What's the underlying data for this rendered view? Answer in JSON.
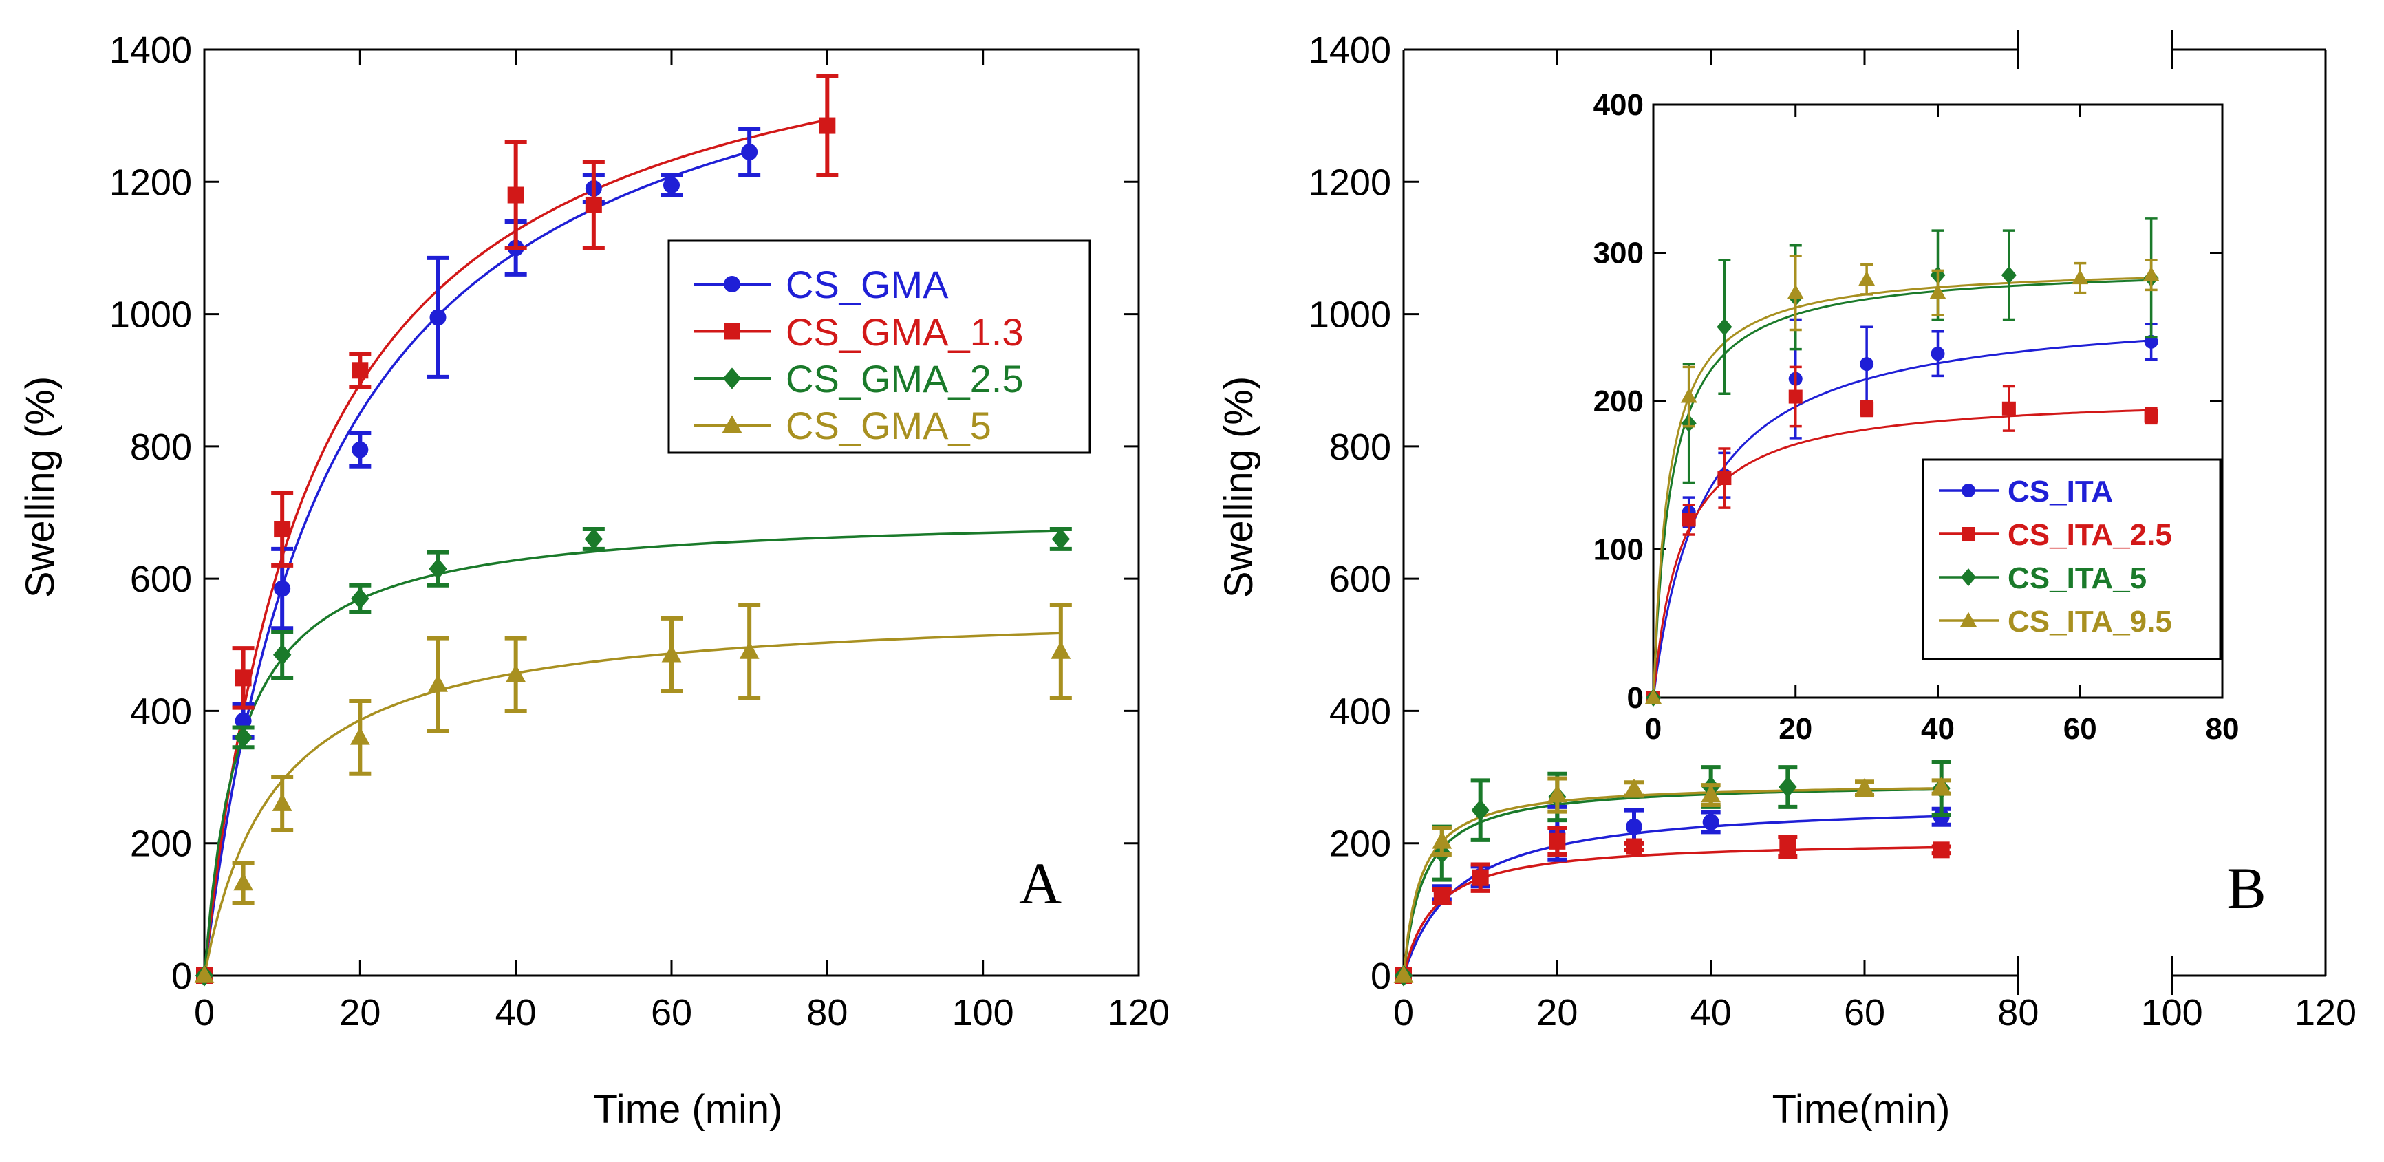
{
  "chart_data": [
    {
      "id": "A",
      "type": "scatter",
      "panel_label": "A",
      "xlabel": "Time (min)",
      "ylabel": "Swelling (%)",
      "xlim": [
        0,
        120
      ],
      "ylim": [
        0,
        1400
      ],
      "xticks": [
        0,
        20,
        40,
        60,
        80,
        100,
        120
      ],
      "yticks": [
        0,
        200,
        400,
        600,
        800,
        1000,
        1200,
        1400
      ],
      "grid": false,
      "legend_position": "right",
      "series": [
        {
          "name": "CS_GMA",
          "color": "#1f1fd6",
          "marker": "circle",
          "x": [
            0,
            5,
            10,
            20,
            30,
            40,
            50,
            60,
            70
          ],
          "y": [
            0,
            385,
            585,
            795,
            995,
            1100,
            1190,
            1195,
            1245
          ],
          "err": [
            0,
            25,
            60,
            25,
            90,
            40,
            20,
            15,
            35
          ],
          "fit": {
            "smax": 1530,
            "k": 16
          }
        },
        {
          "name": "CS_GMA_1.3",
          "color": "#d21818",
          "marker": "square",
          "x": [
            0,
            5,
            10,
            20,
            40,
            50,
            80
          ],
          "y": [
            0,
            450,
            675,
            915,
            1180,
            1165,
            1285
          ],
          "err": [
            0,
            45,
            55,
            25,
            80,
            65,
            75
          ],
          "fit": {
            "smax": 1520,
            "k": 14
          }
        },
        {
          "name": "CS_GMA_2.5",
          "color": "#1a7a2a",
          "marker": "diamond",
          "x": [
            0,
            5,
            10,
            20,
            30,
            50,
            110
          ],
          "y": [
            0,
            360,
            485,
            570,
            615,
            660,
            660
          ],
          "err": [
            0,
            15,
            35,
            20,
            25,
            15,
            15
          ],
          "fit": {
            "smax": 700,
            "k": 4.6
          }
        },
        {
          "name": "CS_GMA_5",
          "color": "#a89020",
          "marker": "triangle",
          "x": [
            0,
            5,
            10,
            20,
            30,
            40,
            60,
            70,
            110
          ],
          "y": [
            0,
            140,
            260,
            360,
            440,
            455,
            485,
            490,
            490
          ],
          "err": [
            0,
            30,
            40,
            55,
            70,
            55,
            55,
            70,
            70
          ],
          "fit": {
            "smax": 560,
            "k": 9
          }
        }
      ]
    },
    {
      "id": "B",
      "type": "scatter",
      "panel_label": "B",
      "xlabel": "Time(min)",
      "ylabel": "Swelling (%)",
      "xlim": [
        0,
        120
      ],
      "ylim": [
        0,
        1400
      ],
      "xticks": [
        0,
        20,
        40,
        60,
        80,
        100,
        120
      ],
      "yticks": [
        0,
        200,
        400,
        600,
        800,
        1000,
        1200,
        1400
      ],
      "axis_break": [
        80,
        100
      ],
      "grid": false,
      "series": [
        {
          "name": "CS_ITA",
          "color": "#1f1fd6",
          "marker": "circle",
          "x": [
            0,
            5,
            10,
            20,
            30,
            40,
            70
          ],
          "y": [
            0,
            125,
            150,
            215,
            225,
            232,
            240
          ],
          "err": [
            0,
            10,
            15,
            40,
            25,
            15,
            12
          ],
          "fit": {
            "smax": 265,
            "k": 7
          }
        },
        {
          "name": "CS_ITA_2.5",
          "color": "#d21818",
          "marker": "square",
          "x": [
            0,
            5,
            10,
            20,
            30,
            50,
            70
          ],
          "y": [
            0,
            120,
            148,
            203,
            195,
            195,
            190
          ],
          "err": [
            0,
            10,
            20,
            20,
            5,
            15,
            5
          ],
          "fit": {
            "smax": 205,
            "k": 4
          }
        },
        {
          "name": "CS_ITA_5",
          "color": "#1a7a2a",
          "marker": "diamond",
          "x": [
            0,
            5,
            10,
            20,
            40,
            50,
            70
          ],
          "y": [
            0,
            185,
            250,
            270,
            285,
            285,
            283
          ],
          "err": [
            0,
            40,
            45,
            35,
            30,
            30,
            40
          ],
          "fit": {
            "smax": 292,
            "k": 2.6
          }
        },
        {
          "name": "CS_ITA_9.5",
          "color": "#a89020",
          "marker": "triangle",
          "x": [
            0,
            5,
            20,
            30,
            40,
            60,
            70
          ],
          "y": [
            0,
            203,
            273,
            282,
            273,
            283,
            285
          ],
          "err": [
            0,
            20,
            25,
            10,
            15,
            10,
            10
          ],
          "fit": {
            "smax": 292,
            "k": 2.2
          }
        }
      ],
      "inset": {
        "xlim": [
          0,
          80
        ],
        "ylim": [
          0,
          400
        ],
        "xticks": [
          0,
          20,
          40,
          60,
          80
        ],
        "yticks": [
          0,
          100,
          200,
          300,
          400
        ],
        "legend_position": "bottom-right"
      }
    }
  ]
}
